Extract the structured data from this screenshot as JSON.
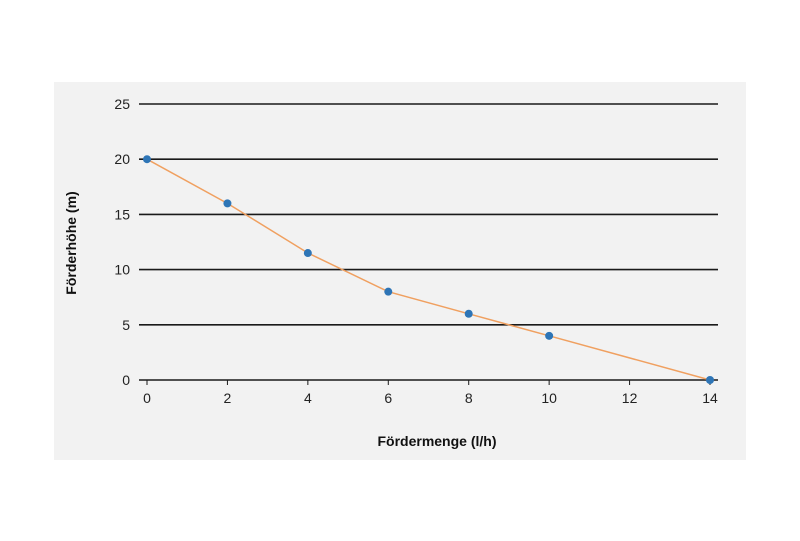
{
  "chart_data": {
    "type": "line",
    "title": "",
    "xlabel": "Fördermenge (l/h)",
    "ylabel": "Förderhöhe  (m)",
    "xlim": [
      0,
      14
    ],
    "ylim": [
      0,
      25
    ],
    "x_ticks": [
      "0",
      "2",
      "4",
      "6",
      "8",
      "10",
      "12",
      "14"
    ],
    "y_ticks": [
      "0",
      "5",
      "10",
      "15",
      "20",
      "25"
    ],
    "grid": "horizontal",
    "series": [
      {
        "x": [
          0,
          2,
          4,
          6,
          8,
          10,
          14
        ],
        "y": [
          20,
          16,
          11.5,
          8,
          6,
          4,
          0
        ],
        "line_color": "#f0a060",
        "marker_color": "#2e75b6"
      }
    ]
  }
}
